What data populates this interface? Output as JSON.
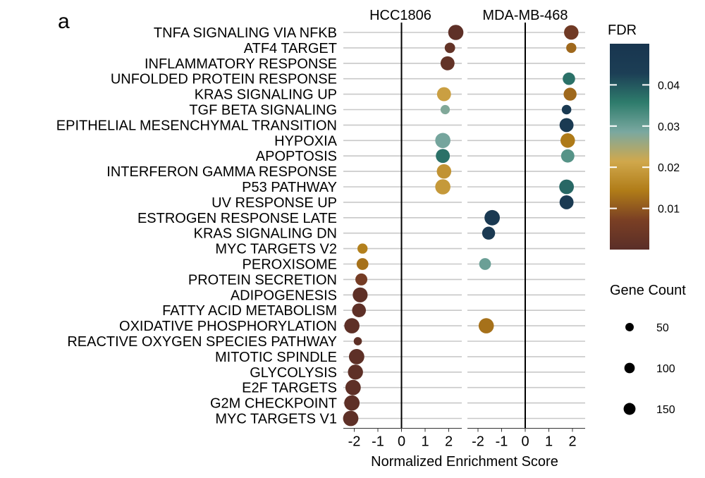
{
  "panel_letter": "a",
  "chart_data": {
    "type": "scatter",
    "xlabel": "Normalized Enrichment Score",
    "xlim": [
      -2.4,
      2.5
    ],
    "xticks": [
      -2,
      -1,
      0,
      1,
      2
    ],
    "grid": "horizontal",
    "pathways": [
      "TNFA SIGNALING VIA NFKB",
      "ATF4 TARGET",
      "INFLAMMATORY RESPONSE",
      "UNFOLDED PROTEIN RESPONSE",
      "KRAS SIGNALING UP",
      "TGF BETA SIGNALING",
      "EPITHELIAL MESENCHYMAL TRANSITION",
      "HYPOXIA",
      "APOPTOSIS",
      "INTERFERON GAMMA RESPONSE",
      "P53 PATHWAY",
      "UV RESPONSE UP",
      "ESTROGEN RESPONSE LATE",
      "KRAS SIGNALING DN",
      "MYC TARGETS V2",
      "PEROXISOME",
      "PROTEIN SECRETION",
      "ADIPOGENESIS",
      "FATTY ACID METABOLISM",
      "OXIDATIVE PHOSPHORYLATION",
      "REACTIVE OXYGEN SPECIES PATHWAY",
      "MITOTIC SPINDLE",
      "GLYCOLYSIS",
      "E2F TARGETS",
      "G2M CHECKPOINT",
      "MYC TARGETS V1"
    ],
    "panels": [
      {
        "name": "HCC1806",
        "points": [
          {
            "pathway": "TNFA SIGNALING VIA NFKB",
            "nes": 2.3,
            "fdr": 0.001,
            "count": 190
          },
          {
            "pathway": "ATF4 TARGET",
            "nes": 2.05,
            "fdr": 0.002,
            "count": 60
          },
          {
            "pathway": "INFLAMMATORY RESPONSE",
            "nes": 1.95,
            "fdr": 0.002,
            "count": 150
          },
          {
            "pathway": "KRAS SIGNALING UP",
            "nes": 1.8,
            "fdr": 0.02,
            "count": 150
          },
          {
            "pathway": "TGF BETA SIGNALING",
            "nes": 1.85,
            "fdr": 0.028,
            "count": 40
          },
          {
            "pathway": "HYPOXIA",
            "nes": 1.75,
            "fdr": 0.029,
            "count": 190
          },
          {
            "pathway": "APOPTOSIS",
            "nes": 1.75,
            "fdr": 0.037,
            "count": 150
          },
          {
            "pathway": "INTERFERON GAMMA RESPONSE",
            "nes": 1.8,
            "fdr": 0.018,
            "count": 165
          },
          {
            "pathway": "P53 PATHWAY",
            "nes": 1.75,
            "fdr": 0.019,
            "count": 190
          },
          {
            "pathway": "MYC TARGETS V2",
            "nes": -1.65,
            "fdr": 0.015,
            "count": 55
          },
          {
            "pathway": "PEROXISOME",
            "nes": -1.65,
            "fdr": 0.013,
            "count": 90
          },
          {
            "pathway": "PROTEIN SECRETION",
            "nes": -1.7,
            "fdr": 0.006,
            "count": 95
          },
          {
            "pathway": "ADIPOGENESIS",
            "nes": -1.75,
            "fdr": 0.001,
            "count": 180
          },
          {
            "pathway": "FATTY ACID METABOLISM",
            "nes": -1.8,
            "fdr": 0.001,
            "count": 145
          },
          {
            "pathway": "OXIDATIVE PHOSPHORYLATION",
            "nes": -2.1,
            "fdr": 0.001,
            "count": 190
          },
          {
            "pathway": "REACTIVE OXYGEN SPECIES PATHWAY",
            "nes": -1.85,
            "fdr": 0.001,
            "count": 25
          },
          {
            "pathway": "MITOTIC SPINDLE",
            "nes": -1.9,
            "fdr": 0.001,
            "count": 195
          },
          {
            "pathway": "GLYCOLYSIS",
            "nes": -1.95,
            "fdr": 0.001,
            "count": 185
          },
          {
            "pathway": "E2F TARGETS",
            "nes": -2.05,
            "fdr": 0.001,
            "count": 195
          },
          {
            "pathway": "G2M CHECKPOINT",
            "nes": -2.1,
            "fdr": 0.001,
            "count": 195
          },
          {
            "pathway": "MYC TARGETS V1",
            "nes": -2.15,
            "fdr": 0.001,
            "count": 195
          }
        ]
      },
      {
        "name": "MDA-MB-468",
        "points": [
          {
            "pathway": "TNFA SIGNALING VIA NFKB",
            "nes": 1.95,
            "fdr": 0.005,
            "count": 165
          },
          {
            "pathway": "ATF4 TARGET",
            "nes": 1.95,
            "fdr": 0.012,
            "count": 55
          },
          {
            "pathway": "UNFOLDED PROTEIN RESPONSE",
            "nes": 1.85,
            "fdr": 0.037,
            "count": 105
          },
          {
            "pathway": "KRAS SIGNALING UP",
            "nes": 1.9,
            "fdr": 0.012,
            "count": 120
          },
          {
            "pathway": "TGF BETA SIGNALING",
            "nes": 1.75,
            "fdr": 0.046,
            "count": 45
          },
          {
            "pathway": "EPITHELIAL MESENCHYMAL TRANSITION",
            "nes": 1.75,
            "fdr": 0.046,
            "count": 150
          },
          {
            "pathway": "HYPOXIA",
            "nes": 1.8,
            "fdr": 0.014,
            "count": 165
          },
          {
            "pathway": "APOPTOSIS",
            "nes": 1.8,
            "fdr": 0.032,
            "count": 130
          },
          {
            "pathway": "P53 PATHWAY",
            "nes": 1.75,
            "fdr": 0.038,
            "count": 170
          },
          {
            "pathway": "UV RESPONSE UP",
            "nes": 1.75,
            "fdr": 0.046,
            "count": 150
          },
          {
            "pathway": "ESTROGEN RESPONSE LATE",
            "nes": -1.4,
            "fdr": 0.047,
            "count": 195
          },
          {
            "pathway": "KRAS SIGNALING DN",
            "nes": -1.55,
            "fdr": 0.047,
            "count": 120
          },
          {
            "pathway": "PEROXISOME",
            "nes": -1.7,
            "fdr": 0.03,
            "count": 90
          },
          {
            "pathway": "OXIDATIVE PHOSPHORYLATION",
            "nes": -1.65,
            "fdr": 0.013,
            "count": 190
          }
        ]
      }
    ],
    "color_legend": {
      "title": "FDR",
      "ticks": [
        0.04,
        0.03,
        0.02,
        0.01
      ],
      "tick_labels": [
        "0.04",
        "0.03",
        "0.02",
        "0.01"
      ],
      "range": [
        0.0,
        0.05
      ],
      "colors": [
        "#5a2e28",
        "#7a3f24",
        "#b07c18",
        "#d0a84c",
        "#7aa8a0",
        "#2e7c6c",
        "#1c3e55",
        "#18354f"
      ]
    },
    "size_legend": {
      "title": "Gene Count",
      "values": [
        50,
        100,
        150
      ],
      "labels": [
        "50",
        "100",
        "150"
      ]
    }
  }
}
